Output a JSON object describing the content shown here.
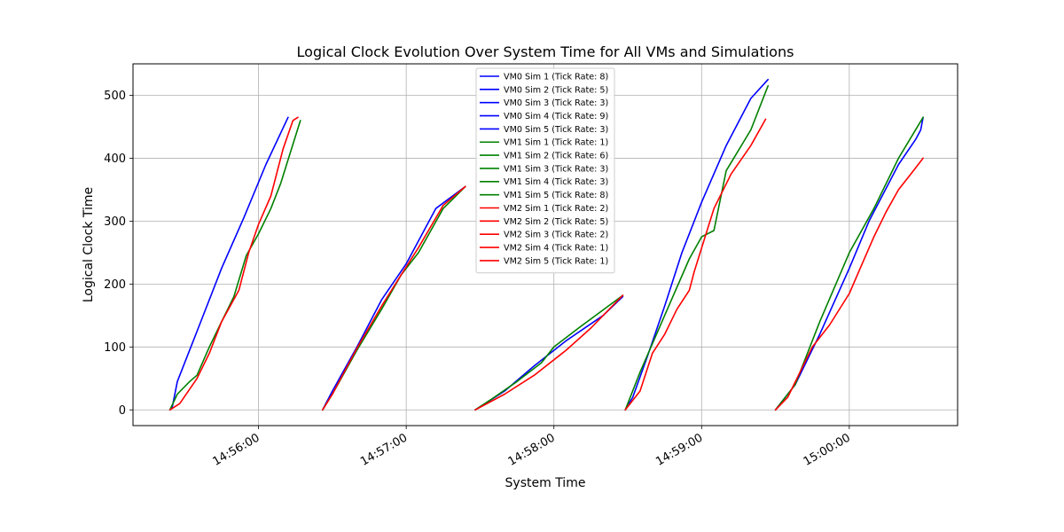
{
  "chart_data": {
    "type": "line",
    "title": "Logical Clock Evolution Over System Time for All VMs and Simulations",
    "xlabel": "System Time",
    "ylabel": "Logical Clock Time",
    "x_ticks": [
      "14:56:00",
      "14:57:00",
      "14:58:00",
      "14:59:00",
      "15:00:00"
    ],
    "y_ticks": [
      0,
      100,
      200,
      300,
      400,
      500
    ],
    "xlim": [
      "14:55:09",
      "15:00:44"
    ],
    "ylim": [
      -25,
      550
    ],
    "grid": true,
    "legend_position": "top-center",
    "colors": {
      "VM0": "#0000ff",
      "VM1": "#008000",
      "VM2": "#ff0000"
    },
    "series": [
      {
        "name": "VM0 Sim 1 (Tick Rate: 8)",
        "vm": "VM0",
        "sim": 1,
        "points": [
          [
            "14:55:24",
            0
          ],
          [
            "14:55:25",
            5
          ],
          [
            "14:55:27",
            45
          ],
          [
            "14:55:36",
            135
          ],
          [
            "14:55:45",
            225
          ],
          [
            "14:55:54",
            305
          ],
          [
            "14:56:03",
            390
          ],
          [
            "14:56:12",
            465
          ]
        ]
      },
      {
        "name": "VM0 Sim 2 (Tick Rate: 5)",
        "vm": "VM0",
        "sim": 2,
        "points": [
          [
            "14:56:26",
            0
          ],
          [
            "14:56:30",
            30
          ],
          [
            "14:56:40",
            100
          ],
          [
            "14:56:50",
            175
          ],
          [
            "14:57:00",
            232
          ],
          [
            "14:57:12",
            320
          ],
          [
            "14:57:24",
            355
          ]
        ]
      },
      {
        "name": "VM0 Sim 3 (Tick Rate: 3)",
        "vm": "VM0",
        "sim": 3,
        "points": [
          [
            "14:57:28",
            0
          ],
          [
            "14:57:40",
            30
          ],
          [
            "14:57:52",
            70
          ],
          [
            "14:58:05",
            110
          ],
          [
            "14:58:20",
            150
          ],
          [
            "14:58:28",
            180
          ]
        ]
      },
      {
        "name": "VM0 Sim 4 (Tick Rate: 9)",
        "vm": "VM0",
        "sim": 4,
        "points": [
          [
            "14:58:29",
            0
          ],
          [
            "14:58:32",
            20
          ],
          [
            "14:58:38",
            85
          ],
          [
            "14:58:45",
            165
          ],
          [
            "14:58:52",
            250
          ],
          [
            "14:59:00",
            330
          ],
          [
            "14:59:10",
            420
          ],
          [
            "14:59:20",
            495
          ],
          [
            "14:59:27",
            525
          ]
        ]
      },
      {
        "name": "VM0 Sim 5 (Tick Rate: 3)",
        "vm": "VM0",
        "sim": 5,
        "points": [
          [
            "14:59:30",
            0
          ],
          [
            "14:59:38",
            40
          ],
          [
            "14:59:48",
            120
          ],
          [
            "15:00:00",
            225
          ],
          [
            "15:00:08",
            300
          ],
          [
            "15:00:20",
            390
          ],
          [
            "15:00:27",
            430
          ],
          [
            "15:00:29",
            445
          ],
          [
            "15:00:30",
            465
          ]
        ]
      },
      {
        "name": "VM1 Sim 1 (Tick Rate: 1)",
        "vm": "VM1",
        "sim": 1,
        "points": [
          [
            "14:55:24",
            0
          ],
          [
            "14:55:27",
            25
          ],
          [
            "14:55:32",
            45
          ],
          [
            "14:55:35",
            55
          ],
          [
            "14:55:40",
            100
          ],
          [
            "14:55:45",
            140
          ],
          [
            "14:55:50",
            180
          ],
          [
            "14:55:55",
            245
          ],
          [
            "14:56:00",
            280
          ],
          [
            "14:56:05",
            320
          ],
          [
            "14:56:09",
            360
          ],
          [
            "14:56:13",
            410
          ],
          [
            "14:56:17",
            460
          ]
        ]
      },
      {
        "name": "VM1 Sim 2 (Tick Rate: 6)",
        "vm": "VM1",
        "sim": 2,
        "points": [
          [
            "14:56:26",
            0
          ],
          [
            "14:56:30",
            25
          ],
          [
            "14:56:40",
            95
          ],
          [
            "14:56:50",
            160
          ],
          [
            "14:56:58",
            215
          ],
          [
            "14:57:05",
            250
          ],
          [
            "14:57:15",
            320
          ],
          [
            "14:57:24",
            355
          ]
        ]
      },
      {
        "name": "VM1 Sim 3 (Tick Rate: 3)",
        "vm": "VM1",
        "sim": 3,
        "points": [
          [
            "14:57:28",
            0
          ],
          [
            "14:57:35",
            18
          ],
          [
            "14:57:45",
            45
          ],
          [
            "14:57:55",
            75
          ],
          [
            "14:58:00",
            100
          ],
          [
            "14:58:10",
            130
          ],
          [
            "14:58:28",
            182
          ]
        ]
      },
      {
        "name": "VM1 Sim 4 (Tick Rate: 3)",
        "vm": "VM1",
        "sim": 4,
        "points": [
          [
            "14:58:29",
            0
          ],
          [
            "14:58:35",
            60
          ],
          [
            "14:58:45",
            150
          ],
          [
            "14:58:55",
            240
          ],
          [
            "14:59:00",
            275
          ],
          [
            "14:59:05",
            285
          ],
          [
            "14:59:10",
            380
          ],
          [
            "14:59:20",
            445
          ],
          [
            "14:59:27",
            515
          ]
        ]
      },
      {
        "name": "VM1 Sim 5 (Tick Rate: 8)",
        "vm": "VM1",
        "sim": 5,
        "points": [
          [
            "14:59:30",
            0
          ],
          [
            "14:59:38",
            40
          ],
          [
            "14:59:48",
            140
          ],
          [
            "15:00:00",
            250
          ],
          [
            "15:00:10",
            320
          ],
          [
            "15:00:20",
            400
          ],
          [
            "15:00:30",
            465
          ]
        ]
      },
      {
        "name": "VM2 Sim 1 (Tick Rate: 2)",
        "vm": "VM2",
        "sim": 1,
        "points": [
          [
            "14:55:24",
            0
          ],
          [
            "14:55:28",
            10
          ],
          [
            "14:55:35",
            50
          ],
          [
            "14:55:40",
            90
          ],
          [
            "14:55:45",
            140
          ],
          [
            "14:55:52",
            190
          ],
          [
            "14:55:56",
            250
          ],
          [
            "14:56:00",
            295
          ],
          [
            "14:56:05",
            340
          ],
          [
            "14:56:10",
            415
          ],
          [
            "14:56:14",
            460
          ],
          [
            "14:56:16",
            465
          ]
        ]
      },
      {
        "name": "VM2 Sim 2 (Tick Rate: 5)",
        "vm": "VM2",
        "sim": 2,
        "points": [
          [
            "14:56:26",
            0
          ],
          [
            "14:56:30",
            25
          ],
          [
            "14:56:40",
            98
          ],
          [
            "14:56:50",
            165
          ],
          [
            "14:56:58",
            215
          ],
          [
            "14:57:05",
            258
          ],
          [
            "14:57:15",
            325
          ],
          [
            "14:57:24",
            355
          ]
        ]
      },
      {
        "name": "VM2 Sim 3 (Tick Rate: 2)",
        "vm": "VM2",
        "sim": 3,
        "points": [
          [
            "14:57:28",
            0
          ],
          [
            "14:57:40",
            25
          ],
          [
            "14:57:52",
            55
          ],
          [
            "14:58:05",
            95
          ],
          [
            "14:58:15",
            130
          ],
          [
            "14:58:28",
            182
          ]
        ]
      },
      {
        "name": "VM2 Sim 4 (Tick Rate: 1)",
        "vm": "VM2",
        "sim": 4,
        "points": [
          [
            "14:58:29",
            0
          ],
          [
            "14:58:35",
            30
          ],
          [
            "14:58:40",
            90
          ],
          [
            "14:58:45",
            120
          ],
          [
            "14:58:50",
            160
          ],
          [
            "14:58:55",
            190
          ],
          [
            "14:58:57",
            220
          ],
          [
            "14:59:05",
            320
          ],
          [
            "14:59:12",
            375
          ],
          [
            "14:59:20",
            420
          ],
          [
            "14:59:26",
            462
          ]
        ]
      },
      {
        "name": "VM2 Sim 5 (Tick Rate: 1)",
        "vm": "VM2",
        "sim": 5,
        "points": [
          [
            "14:59:30",
            0
          ],
          [
            "14:59:35",
            20
          ],
          [
            "14:59:40",
            60
          ],
          [
            "14:59:45",
            100
          ],
          [
            "14:59:52",
            135
          ],
          [
            "15:00:00",
            185
          ],
          [
            "15:00:05",
            230
          ],
          [
            "15:00:10",
            275
          ],
          [
            "15:00:15",
            315
          ],
          [
            "15:00:20",
            350
          ],
          [
            "15:00:25",
            375
          ],
          [
            "15:00:30",
            400
          ]
        ]
      }
    ]
  }
}
